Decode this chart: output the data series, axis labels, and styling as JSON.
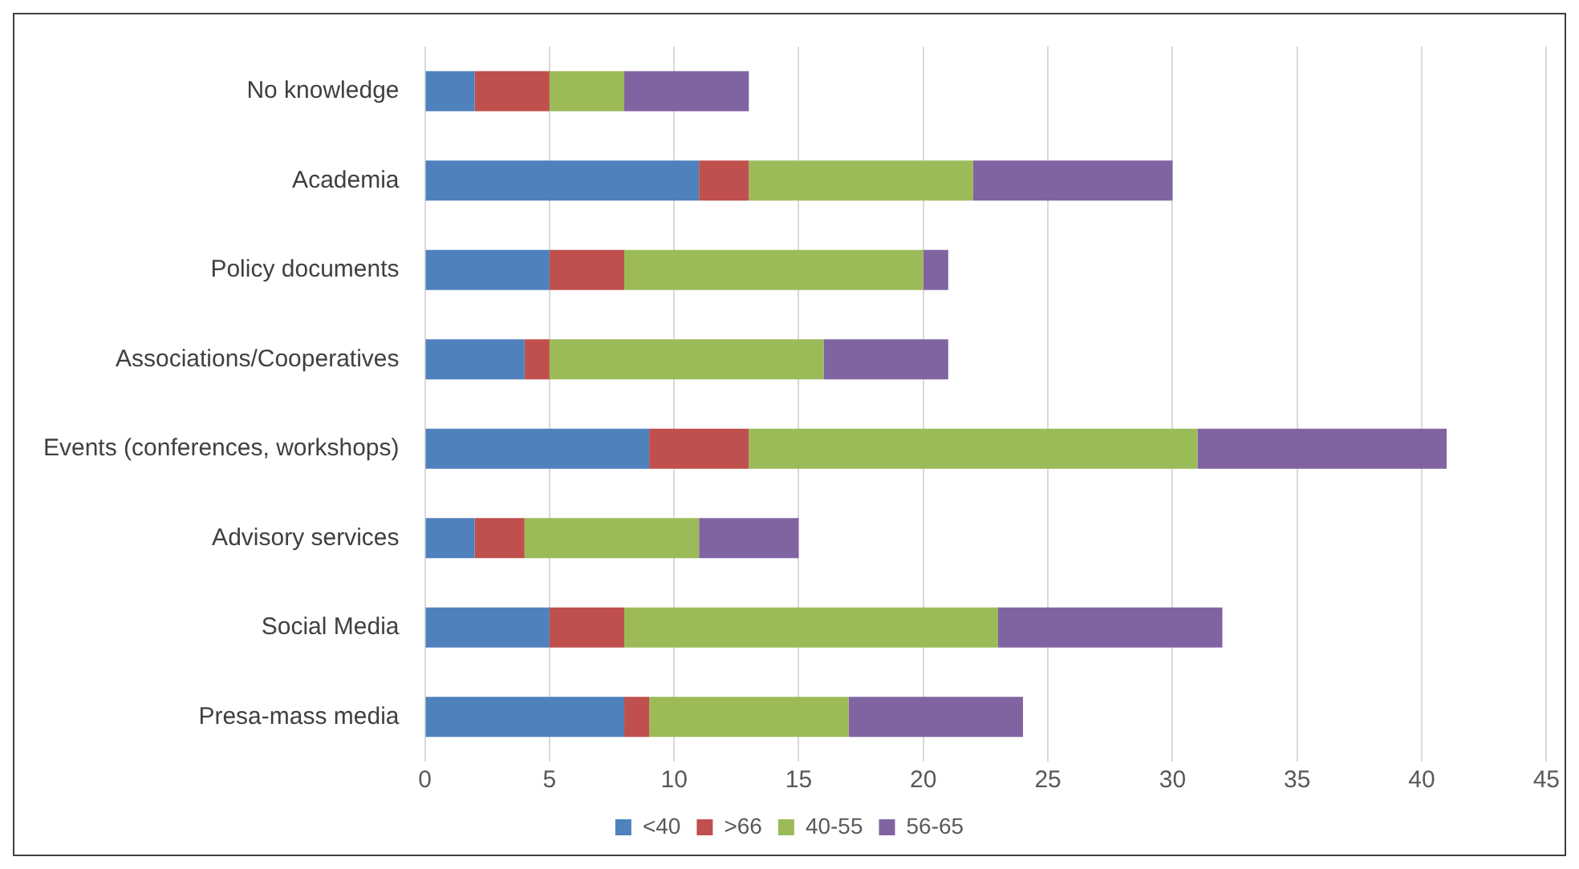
{
  "chart_data": {
    "type": "bar",
    "orientation": "horizontal",
    "stacked": true,
    "categories": [
      "No knowledge",
      "Academia",
      "Policy documents",
      "Associations/Cooperatives",
      "Events (conferences, workshops)",
      "Advisory services",
      "Social Media",
      "Presa-mass media"
    ],
    "series": [
      {
        "name": "<40",
        "color": "#4f81bd",
        "values": [
          2,
          11,
          5,
          4,
          9,
          2,
          5,
          8
        ]
      },
      {
        "name": ">66",
        "color": "#c0504d",
        "values": [
          3,
          2,
          3,
          1,
          4,
          2,
          3,
          1
        ]
      },
      {
        "name": "40-55",
        "color": "#9bbb59",
        "values": [
          3,
          9,
          12,
          11,
          18,
          7,
          15,
          8
        ]
      },
      {
        "name": "56-65",
        "color": "#8064a2",
        "values": [
          5,
          8,
          1,
          5,
          10,
          4,
          9,
          7
        ]
      }
    ],
    "xlim": [
      0,
      45
    ],
    "xticks": [
      0,
      5,
      10,
      15,
      20,
      25,
      30,
      35,
      40,
      45
    ],
    "grid": "x",
    "legend": "bottom"
  }
}
